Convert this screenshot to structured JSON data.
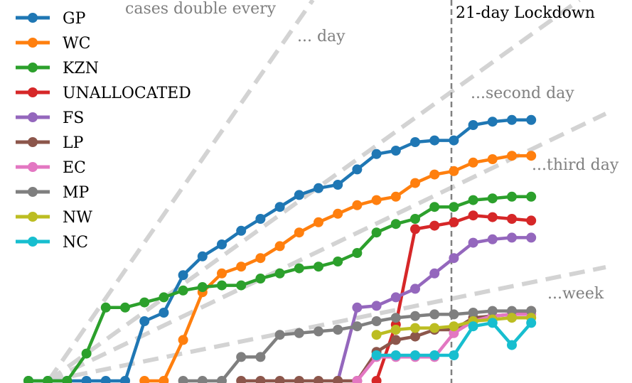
{
  "chart_data": {
    "type": "line",
    "x_index": [
      0,
      1,
      2,
      3,
      4,
      5,
      6,
      7,
      8,
      9,
      10,
      11,
      12,
      13,
      14,
      15,
      16,
      17,
      18,
      19,
      20,
      21,
      22,
      23,
      24,
      25,
      26
    ],
    "lockdown_index": 22.0,
    "lockdown_label": "21-day Lockdown",
    "annotations": [
      {
        "text": "cases double every"
      },
      {
        "text": "... day"
      },
      {
        "text": "...second day"
      },
      {
        "text": "...third day"
      },
      {
        "text": "...week"
      }
    ],
    "series": [
      {
        "name": "GP",
        "color": "#1f77b4",
        "values": [
          0,
          0,
          0,
          0,
          0,
          0,
          3.5,
          4,
          6.2,
          7.3,
          8,
          8.8,
          9.5,
          10.2,
          10.9,
          11.3,
          11.5,
          12.4,
          13.3,
          13.5,
          14,
          14.1,
          14.1,
          15,
          15.2,
          15.3,
          15.3
        ]
      },
      {
        "name": "WC",
        "color": "#ff7f0e",
        "values": [
          null,
          null,
          null,
          null,
          null,
          null,
          0,
          0,
          2.4,
          5.2,
          6.3,
          6.7,
          7.2,
          7.9,
          8.7,
          9.3,
          9.8,
          10.3,
          10.6,
          10.8,
          11.6,
          12.1,
          12.3,
          12.8,
          13,
          13.2,
          13.2
        ]
      },
      {
        "name": "KZN",
        "color": "#2ca02c",
        "values": [
          0,
          0,
          0,
          1.6,
          4.3,
          4.3,
          4.6,
          4.9,
          5.3,
          5.5,
          5.6,
          5.6,
          6.0,
          6.3,
          6.6,
          6.7,
          7.0,
          7.5,
          8.7,
          9.2,
          9.5,
          10.2,
          10.2,
          10.6,
          10.7,
          10.8,
          10.8
        ]
      },
      {
        "name": "UNALLOCATED",
        "color": "#d62728",
        "values": [
          null,
          null,
          null,
          null,
          null,
          null,
          null,
          null,
          null,
          null,
          null,
          null,
          null,
          null,
          null,
          null,
          null,
          null,
          0,
          3.3,
          8.9,
          9.1,
          9.3,
          9.7,
          9.6,
          9.5,
          9.4
        ]
      },
      {
        "name": "FS",
        "color": "#9467bd",
        "values": [
          null,
          null,
          null,
          null,
          null,
          null,
          null,
          null,
          null,
          null,
          null,
          null,
          null,
          null,
          null,
          null,
          0,
          4.3,
          4.4,
          4.9,
          5.4,
          6.3,
          7.2,
          8.1,
          8.3,
          8.4,
          8.4
        ]
      },
      {
        "name": "LP",
        "color": "#8c564b",
        "values": [
          null,
          null,
          null,
          null,
          null,
          null,
          null,
          null,
          null,
          null,
          null,
          0,
          0,
          0,
          0,
          0,
          0,
          0,
          1.7,
          2.4,
          2.6,
          3.0,
          3.0,
          3.7,
          3.8,
          3.9,
          4.1
        ]
      },
      {
        "name": "EC",
        "color": "#e377c2",
        "values": [
          null,
          null,
          null,
          null,
          null,
          null,
          null,
          null,
          null,
          null,
          null,
          null,
          null,
          null,
          null,
          null,
          null,
          0,
          1.4,
          1.4,
          1.4,
          1.4,
          2.8,
          3.5,
          3.8,
          3.9,
          3.9
        ]
      },
      {
        "name": "MP",
        "color": "#7f7f7f",
        "values": [
          null,
          null,
          null,
          null,
          null,
          null,
          null,
          null,
          0,
          0,
          0,
          1.4,
          1.4,
          2.7,
          2.8,
          2.9,
          3.0,
          3.2,
          3.5,
          3.7,
          3.8,
          3.9,
          3.9,
          4.0,
          4.1,
          4.1,
          4.1
        ]
      },
      {
        "name": "NW",
        "color": "#bcbd22",
        "values": [
          null,
          null,
          null,
          null,
          null,
          null,
          null,
          null,
          null,
          null,
          null,
          null,
          null,
          null,
          null,
          null,
          null,
          null,
          2.7,
          3.0,
          3.1,
          3.1,
          3.2,
          3.5,
          3.6,
          3.7,
          3.7
        ]
      },
      {
        "name": "NC",
        "color": "#17becf",
        "values": [
          null,
          null,
          null,
          null,
          null,
          null,
          null,
          null,
          null,
          null,
          null,
          null,
          null,
          null,
          null,
          null,
          null,
          null,
          1.5,
          1.5,
          1.5,
          1.5,
          1.5,
          3.2,
          3.4,
          2.1,
          3.4
        ]
      }
    ],
    "legend_position": "top-left",
    "grid": false,
    "ylim": [
      0,
      18
    ]
  }
}
